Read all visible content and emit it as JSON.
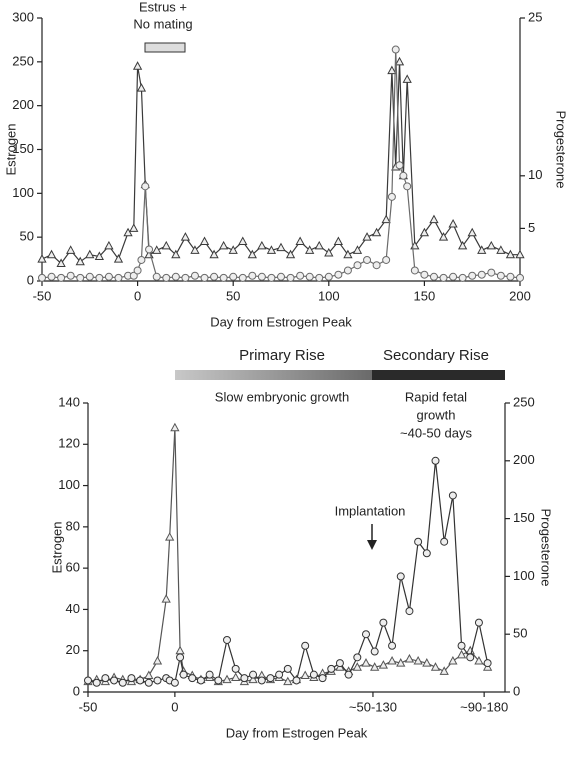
{
  "chart_data": [
    {
      "type": "line",
      "x": [
        -50,
        -45,
        -40,
        -35,
        -30,
        -25,
        -20,
        -15,
        -10,
        -5,
        -2,
        0,
        2,
        4,
        6,
        10,
        15,
        20,
        25,
        30,
        35,
        40,
        45,
        50,
        55,
        60,
        65,
        70,
        75,
        80,
        85,
        90,
        95,
        100,
        105,
        110,
        115,
        120,
        125,
        130,
        133,
        135,
        137,
        139,
        141,
        145,
        150,
        155,
        160,
        165,
        170,
        175,
        180,
        185,
        190,
        195,
        200
      ],
      "series": [
        {
          "name": "Estrogen",
          "color": "#3a3a3a",
          "marker": "triangle",
          "values": [
            25,
            30,
            20,
            35,
            22,
            30,
            28,
            40,
            25,
            55,
            60,
            245,
            220,
            110,
            30,
            35,
            40,
            30,
            50,
            35,
            45,
            30,
            40,
            35,
            45,
            30,
            40,
            35,
            38,
            30,
            45,
            35,
            40,
            32,
            45,
            30,
            35,
            50,
            55,
            70,
            240,
            130,
            250,
            120,
            230,
            40,
            55,
            70,
            50,
            65,
            40,
            55,
            35,
            40,
            35,
            30,
            30
          ]
        },
        {
          "name": "Progesterone",
          "color": "#6a6a6a",
          "marker": "circle",
          "axis": "y2",
          "values": [
            0.3,
            0.4,
            0.3,
            0.5,
            0.3,
            0.4,
            0.3,
            0.4,
            0.3,
            0.5,
            0.5,
            1,
            2,
            9,
            3,
            0.4,
            0.3,
            0.4,
            0.3,
            0.5,
            0.3,
            0.4,
            0.3,
            0.4,
            0.3,
            0.5,
            0.4,
            0.3,
            0.4,
            0.3,
            0.5,
            0.4,
            0.3,
            0.4,
            0.6,
            1,
            1.5,
            2,
            1.5,
            2,
            8,
            22,
            11,
            10,
            9,
            1,
            0.6,
            0.4,
            0.3,
            0.4,
            0.3,
            0.5,
            0.6,
            0.8,
            0.5,
            0.4,
            0.3
          ]
        }
      ],
      "xlim": [
        -50,
        200
      ],
      "xticks": [
        -50,
        0,
        50,
        100,
        150,
        200
      ],
      "ylim": [
        0,
        300
      ],
      "yticks": [
        0,
        50,
        100,
        150,
        200,
        250,
        300
      ],
      "y2lim": [
        0,
        25
      ],
      "y2ticks": [
        5,
        10,
        25
      ],
      "x_label": "Day from Estrogen Peak",
      "y_label": "Estrogen",
      "y2_label": "Progesterone",
      "annotations": [
        "Estrus +",
        "No mating"
      ]
    },
    {
      "type": "line",
      "x": [
        -50,
        -45,
        -40,
        -35,
        -30,
        -25,
        -20,
        -15,
        -10,
        -5,
        -3,
        0,
        3,
        5,
        10,
        15,
        20,
        25,
        30,
        35,
        40,
        45,
        50,
        55,
        60,
        65,
        70,
        75,
        80,
        85,
        90,
        95,
        100,
        105,
        110,
        115,
        120,
        125,
        130,
        135,
        140,
        145,
        150,
        155,
        160,
        165,
        170,
        175,
        180
      ],
      "series": [
        {
          "name": "Estrogen",
          "color": "#555555",
          "marker": "triangle",
          "values": [
            5,
            6,
            5,
            7,
            6,
            5,
            6,
            8,
            15,
            45,
            75,
            128,
            20,
            10,
            8,
            6,
            7,
            5,
            6,
            7,
            5,
            6,
            8,
            6,
            7,
            5,
            6,
            8,
            7,
            9,
            10,
            12,
            10,
            12,
            14,
            12,
            13,
            15,
            14,
            16,
            15,
            14,
            12,
            10,
            15,
            18,
            20,
            15,
            12
          ]
        },
        {
          "name": "Progesterone",
          "color": "#333333",
          "marker": "circle",
          "axis": "y2",
          "values": [
            10,
            8,
            12,
            10,
            8,
            12,
            10,
            8,
            10,
            12,
            10,
            8,
            30,
            15,
            12,
            10,
            15,
            10,
            45,
            20,
            12,
            15,
            10,
            12,
            15,
            20,
            10,
            40,
            15,
            12,
            20,
            25,
            15,
            30,
            50,
            35,
            60,
            40,
            100,
            70,
            130,
            120,
            200,
            130,
            170,
            40,
            30,
            60,
            25
          ]
        }
      ],
      "xlim": [
        -50,
        190
      ],
      "xticks": [
        {
          "value": -50,
          "label": "-50"
        },
        {
          "value": 0,
          "label": "0"
        },
        {
          "value": 114,
          "label": "~50-130"
        },
        {
          "value": 178,
          "label": "~90-180"
        }
      ],
      "ylim": [
        0,
        140
      ],
      "yticks": [
        0,
        20,
        40,
        60,
        80,
        100,
        120,
        140
      ],
      "y2lim": [
        0,
        250
      ],
      "y2ticks": [
        0,
        50,
        100,
        150,
        200,
        250
      ],
      "x_label": "Day from Estrogen Peak",
      "y_label": "Estrogen",
      "y2_label": "Progesterone",
      "annotations": [
        "Primary Rise",
        "Secondary Rise",
        "Slow embryonic growth",
        "Rapid fetal",
        "growth",
        "~40-50 days",
        "Implantation"
      ]
    }
  ]
}
